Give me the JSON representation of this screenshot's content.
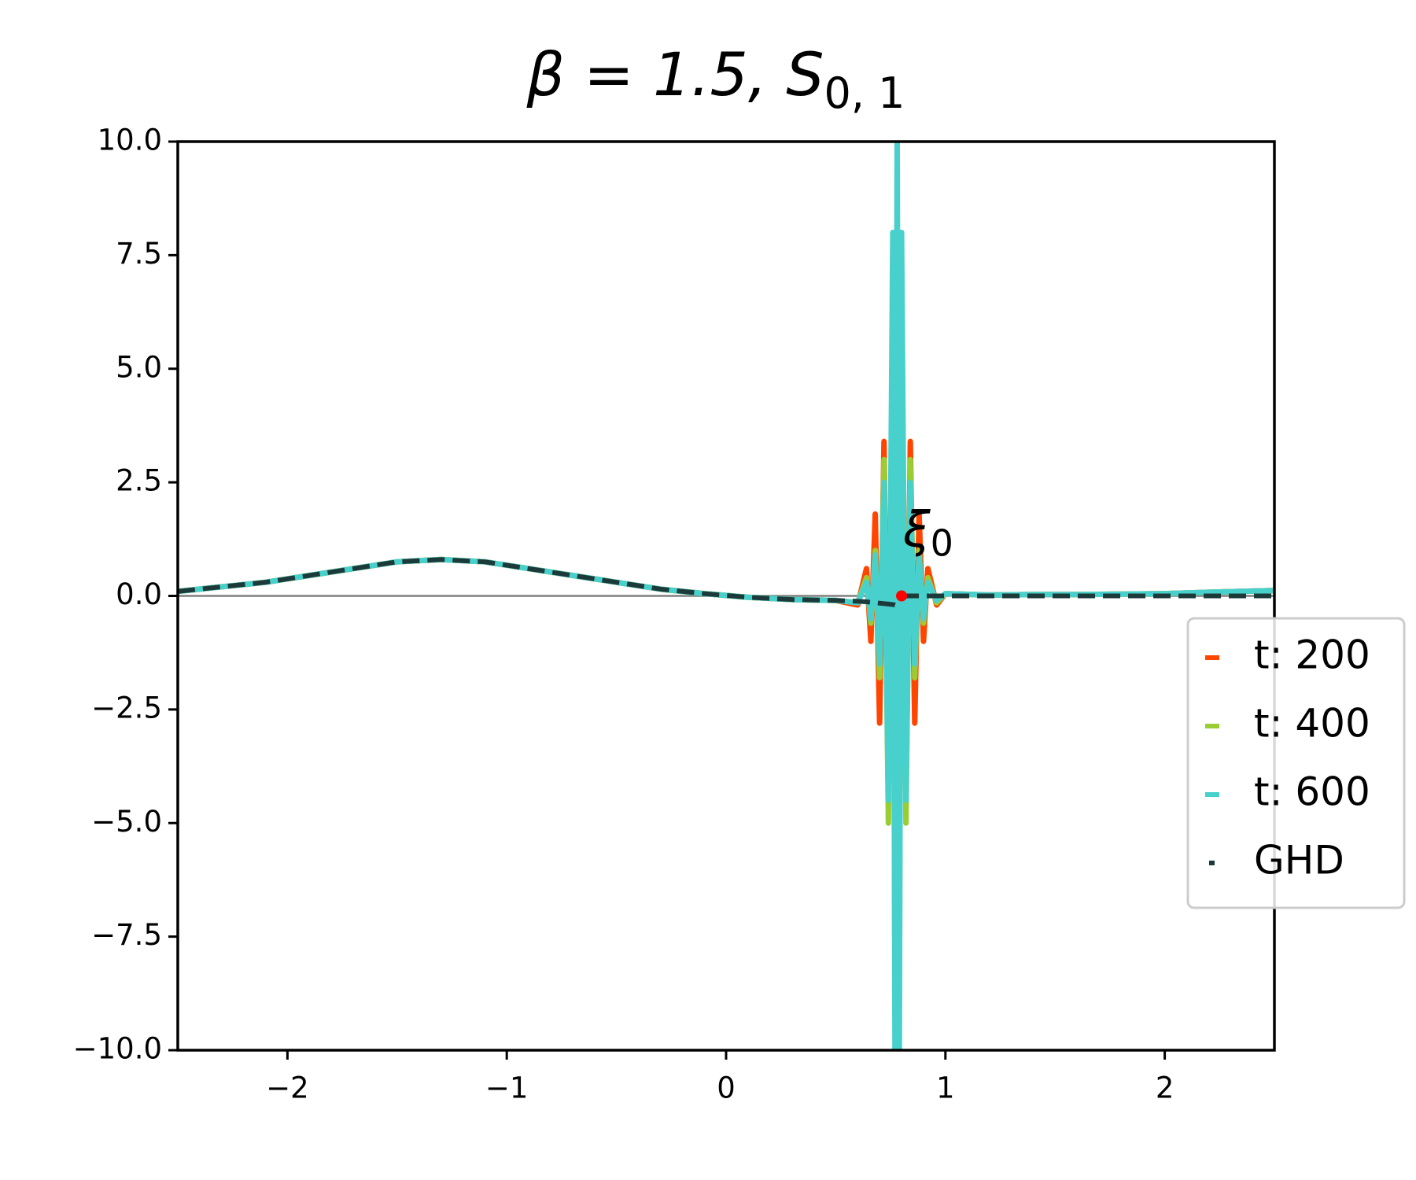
{
  "chart_data": {
    "type": "line",
    "title": "β = 1.5, S",
    "title_subscript": "0, 1",
    "x": [
      -2.5,
      -2.3,
      -2.1,
      -1.9,
      -1.7,
      -1.5,
      -1.3,
      -1.1,
      -0.9,
      -0.7,
      -0.5,
      -0.3,
      -0.1,
      0.1,
      0.3,
      0.5,
      0.6,
      0.64,
      0.66,
      0.68,
      0.7,
      0.72,
      0.74,
      0.76,
      0.77,
      0.78,
      0.79,
      0.8,
      0.82,
      0.84,
      0.86,
      0.88,
      0.9,
      0.92,
      0.96,
      1.0,
      1.2,
      1.4,
      1.6,
      1.8,
      2.0,
      2.2,
      2.5
    ],
    "series": [
      {
        "name": "t: 200",
        "color": "#ff4500",
        "values": [
          0.1,
          0.2,
          0.3,
          0.45,
          0.6,
          0.75,
          0.8,
          0.75,
          0.6,
          0.45,
          0.3,
          0.15,
          0.05,
          -0.03,
          -0.08,
          -0.1,
          -0.2,
          0.6,
          -1.0,
          1.8,
          -2.8,
          3.4,
          -4.5,
          5,
          -5,
          5,
          -5,
          5,
          -4.5,
          3.4,
          -2.8,
          1.8,
          -1.0,
          0.6,
          -0.2,
          0.05,
          0.02,
          0.03,
          0.03,
          0.04,
          0.05,
          0.08,
          0.12
        ]
      },
      {
        "name": "t: 400",
        "color": "#9acd32",
        "values": [
          0.1,
          0.2,
          0.3,
          0.45,
          0.6,
          0.75,
          0.8,
          0.75,
          0.6,
          0.45,
          0.3,
          0.15,
          0.05,
          -0.03,
          -0.08,
          -0.1,
          -0.15,
          0.4,
          -0.6,
          1.0,
          -1.8,
          3,
          -5,
          7,
          -9,
          9.5,
          -9,
          7,
          -5,
          3,
          -1.8,
          1,
          -0.6,
          0.4,
          -0.15,
          0.05,
          0.02,
          0.03,
          0.03,
          0.04,
          0.05,
          0.08,
          0.12
        ]
      },
      {
        "name": "t: 600",
        "color": "#48d1cc",
        "values": [
          0.1,
          0.2,
          0.3,
          0.45,
          0.6,
          0.75,
          0.8,
          0.75,
          0.6,
          0.45,
          0.3,
          0.15,
          0.05,
          -0.03,
          -0.08,
          -0.1,
          -0.15,
          0.3,
          -0.5,
          0.9,
          -1.5,
          2.5,
          -4.5,
          8,
          -10,
          10,
          -10,
          8,
          -4.5,
          2.5,
          -1.5,
          0.9,
          -0.5,
          0.3,
          -0.1,
          0.05,
          0.02,
          0.03,
          0.03,
          0.04,
          0.05,
          0.08,
          0.12
        ]
      },
      {
        "name": "GHD",
        "color": "#1c3a3a",
        "dashed": true,
        "values": [
          0.1,
          0.2,
          0.3,
          0.45,
          0.6,
          0.75,
          0.8,
          0.75,
          0.6,
          0.45,
          0.3,
          0.15,
          0.05,
          -0.03,
          -0.08,
          -0.1,
          -0.12,
          -0.13,
          -0.14,
          -0.15,
          -0.16,
          -0.17,
          -0.18,
          -0.19,
          -0.2,
          -0.22,
          null,
          0,
          0,
          0,
          0,
          0,
          0,
          0,
          0,
          0,
          0,
          0,
          0,
          0,
          0,
          0,
          0
        ]
      }
    ],
    "annotation": {
      "text": "ξ",
      "subscript": "0",
      "x": 0.8,
      "y": 0,
      "color": "#ff0000"
    },
    "hline": 0,
    "xlim": [
      -2.5,
      2.5
    ],
    "ylim": [
      -10,
      10
    ],
    "xticks": [
      {
        "value": -2,
        "label": "−2"
      },
      {
        "value": -1,
        "label": "−1"
      },
      0,
      1,
      2
    ],
    "yticks": [
      {
        "value": 10,
        "label": "10.0"
      },
      {
        "value": 7.5,
        "label": "7.5"
      },
      {
        "value": 5,
        "label": "5.0"
      },
      {
        "value": 2.5,
        "label": "2.5"
      },
      {
        "value": 0,
        "label": "0.0"
      },
      {
        "value": -2.5,
        "label": "−2.5"
      },
      {
        "value": -5,
        "label": "−5.0"
      },
      {
        "value": -7.5,
        "label": "−7.5"
      },
      {
        "value": -10,
        "label": "−10.0"
      }
    ],
    "grid": false,
    "legend": "right"
  }
}
